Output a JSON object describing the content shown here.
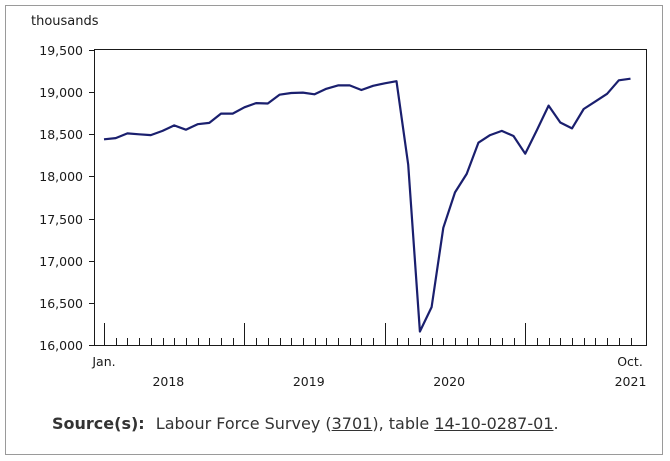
{
  "chart_data": {
    "type": "line",
    "title": "",
    "ylabel": "thousands",
    "xlabel": "",
    "ylim": [
      16000,
      19500
    ],
    "yticks": [
      16000,
      16500,
      17000,
      17500,
      18000,
      18500,
      19000,
      19500
    ],
    "ytick_labels": [
      "16,000",
      "16,500",
      "17,000",
      "17,500",
      "18,000",
      "18,500",
      "19,000",
      "19,500"
    ],
    "x_month_labels": {
      "first": "Jan.",
      "last": "Oct."
    },
    "year_labels": [
      "2018",
      "2019",
      "2020",
      "2021"
    ],
    "grid": false,
    "line_color": "#1a1f6e",
    "x": [
      "2018-01",
      "2018-02",
      "2018-03",
      "2018-04",
      "2018-05",
      "2018-06",
      "2018-07",
      "2018-08",
      "2018-09",
      "2018-10",
      "2018-11",
      "2018-12",
      "2019-01",
      "2019-02",
      "2019-03",
      "2019-04",
      "2019-05",
      "2019-06",
      "2019-07",
      "2019-08",
      "2019-09",
      "2019-10",
      "2019-11",
      "2019-12",
      "2020-01",
      "2020-02",
      "2020-03",
      "2020-04",
      "2020-05",
      "2020-06",
      "2020-07",
      "2020-08",
      "2020-09",
      "2020-10",
      "2020-11",
      "2020-12",
      "2021-01",
      "2021-02",
      "2021-03",
      "2021-04",
      "2021-05",
      "2021-06",
      "2021-07",
      "2021-08",
      "2021-09",
      "2021-10"
    ],
    "series": [
      {
        "values": [
          18440,
          18455,
          18510,
          18500,
          18490,
          18540,
          18605,
          18555,
          18620,
          18635,
          18745,
          18745,
          18820,
          18870,
          18865,
          18970,
          18990,
          18995,
          18975,
          19040,
          19080,
          19080,
          19025,
          19075,
          19105,
          19130,
          18140,
          16160,
          16450,
          17390,
          17810,
          18030,
          18400,
          18490,
          18540,
          18480,
          18270,
          18550,
          18840,
          18640,
          18570,
          18800,
          18890,
          18980,
          19140,
          19160
        ]
      }
    ]
  },
  "source": {
    "label": "Source(s):",
    "text_before": "Labour Force Survey (",
    "link1": "3701",
    "text_middle": "), table ",
    "link2": "14-10-0287-01",
    "text_after": "."
  }
}
